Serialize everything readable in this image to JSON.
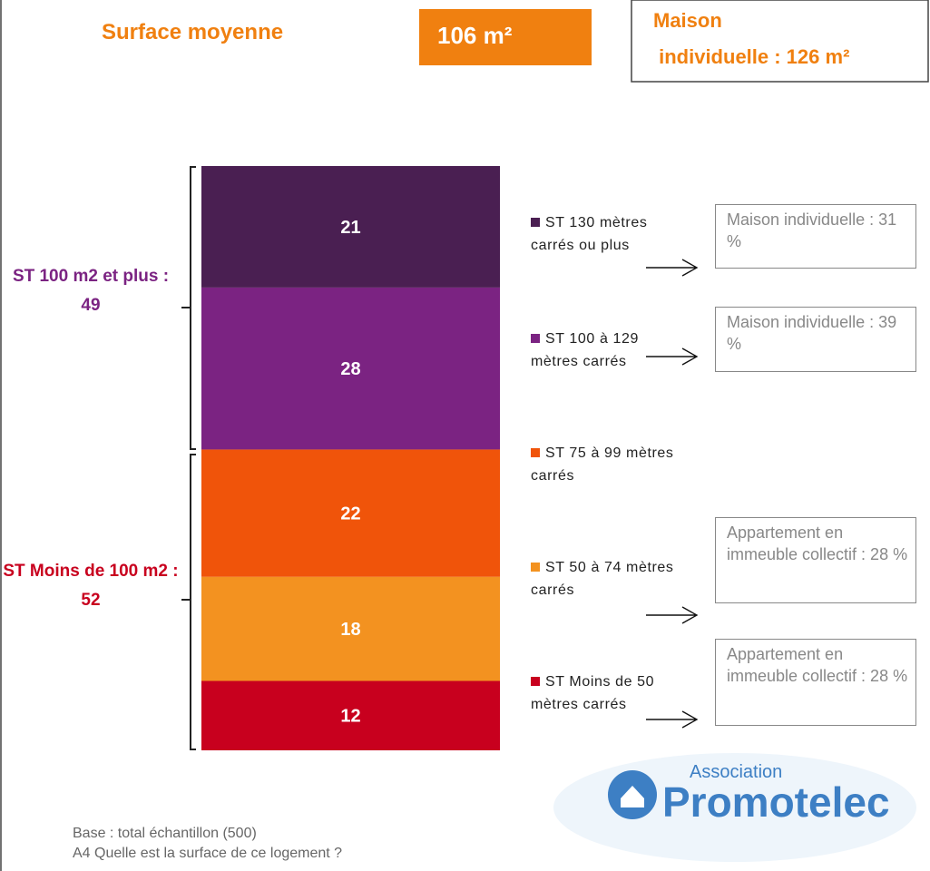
{
  "header": {
    "label": "Surface moyenne",
    "average": "106 m²",
    "house_line1": "Maison",
    "house_line2": " individuelle : 126 m²"
  },
  "chart_data": {
    "type": "stacked-bar",
    "series": [
      {
        "name": "ST 130 mètres carrés ou plus",
        "color": "#4a1f52",
        "values": [
          21
        ]
      },
      {
        "name": "ST 100 à 129 mètres carrés",
        "color": "#7b2382",
        "values": [
          28
        ]
      },
      {
        "name": "ST 75 à 99 mètres carrés",
        "color": "#f0540a",
        "values": [
          22
        ]
      },
      {
        "name": "ST 50 à 74 mètres carrés",
        "color": "#f39220",
        "values": [
          18
        ]
      },
      {
        "name": "ST Moins de 50 mètres carrés",
        "color": "#c8001e",
        "values": [
          12
        ]
      }
    ],
    "groups": [
      {
        "label": "ST 100 m2 et plus :",
        "value": 49,
        "color": "#7b2382"
      },
      {
        "label": "ST Moins de 100 m2 :",
        "value": 52,
        "color": "#c8001e"
      }
    ]
  },
  "callouts": [
    "Maison individuelle : 31 %",
    "Maison individuelle : 39 %",
    "Appartement en immeuble collectif : 28 %",
    "Appartement en immeuble collectif : 28 %"
  ],
  "footer": {
    "base": "Base : total échantillon (500)",
    "question": "A4 Quelle est la surface de ce logement ?"
  },
  "logo": {
    "small": "Association",
    "big": "Promotelec"
  }
}
